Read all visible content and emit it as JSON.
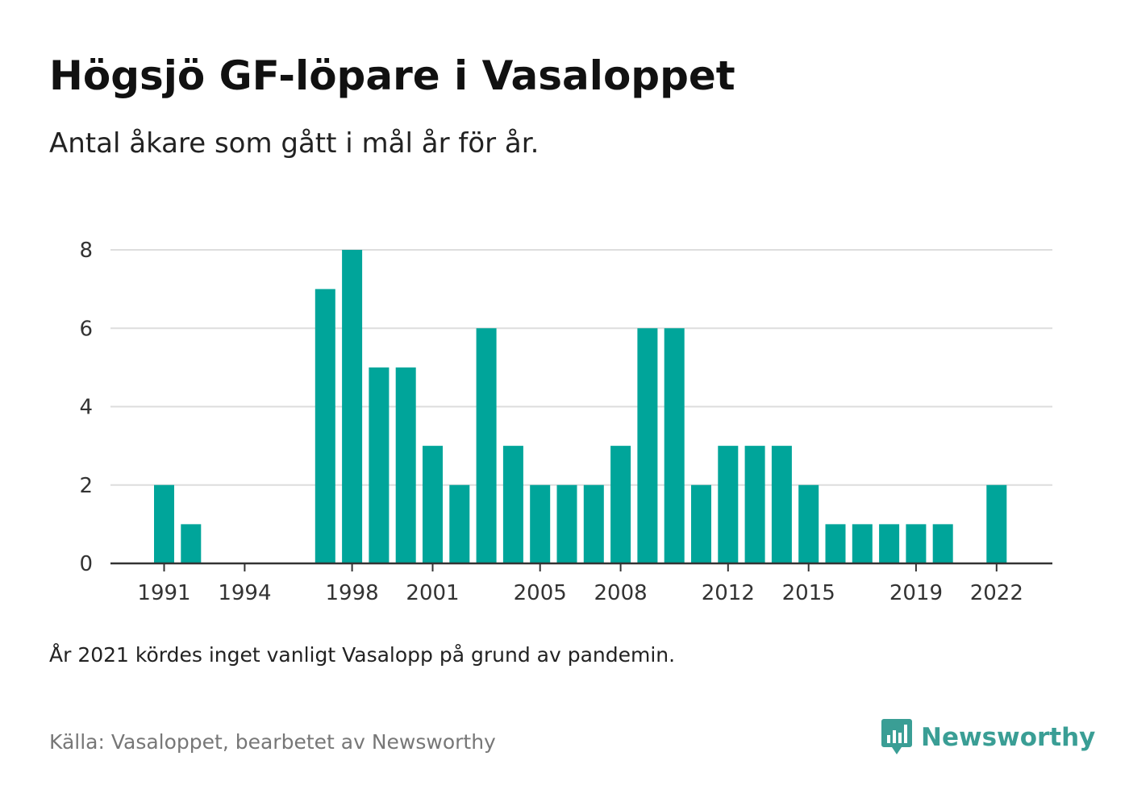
{
  "header": {
    "title": "Högsjö GF-löpare i Vasaloppet",
    "subtitle": "Antal åkare som gått i mål år för år."
  },
  "footer": {
    "note": "År 2021 kördes inget vanligt Vasalopp på grund av pandemin.",
    "source": "Källa: Vasaloppet, bearbetet av Newsworthy",
    "brand": "Newsworthy",
    "brand_icon": "bar-chart-logo-icon"
  },
  "colors": {
    "bar": "#00a59a",
    "grid": "#dddddd",
    "axis": "#333333",
    "brand": "#3a9e95"
  },
  "chart_data": {
    "type": "bar",
    "title": "Högsjö GF-löpare i Vasaloppet",
    "subtitle": "Antal åkare som gått i mål år för år.",
    "xlabel": "",
    "ylabel": "",
    "ylim": [
      0,
      8
    ],
    "yticks": [
      0,
      2,
      4,
      6,
      8
    ],
    "xticks": [
      "1991",
      "1994",
      "1998",
      "2001",
      "2005",
      "2008",
      "2012",
      "2015",
      "2019",
      "2022"
    ],
    "grid": true,
    "categories": [
      "1991",
      "1992",
      "1993",
      "1994",
      "1995",
      "1996",
      "1997",
      "1998",
      "1999",
      "2000",
      "2001",
      "2002",
      "2003",
      "2004",
      "2005",
      "2006",
      "2007",
      "2008",
      "2009",
      "2010",
      "2011",
      "2012",
      "2013",
      "2014",
      "2015",
      "2016",
      "2017",
      "2018",
      "2019",
      "2020",
      "2021",
      "2022"
    ],
    "values": [
      2,
      1,
      0,
      0,
      0,
      0,
      7,
      8,
      5,
      5,
      3,
      2,
      6,
      3,
      2,
      2,
      2,
      3,
      6,
      6,
      2,
      3,
      3,
      3,
      2,
      1,
      1,
      1,
      1,
      1,
      0,
      2
    ]
  }
}
